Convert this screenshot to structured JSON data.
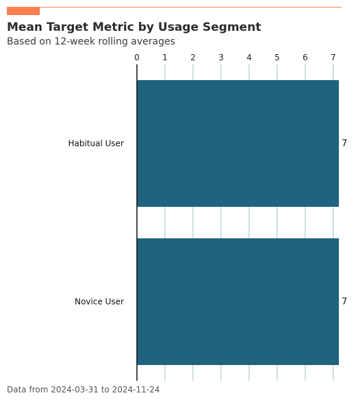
{
  "header": {
    "title": "Mean Target Metric by Usage Segment",
    "subtitle": "Based on 12-week rolling averages"
  },
  "footer": {
    "note": "Data from 2024-03-31 to 2024-11-24"
  },
  "colors": {
    "accent": "#ff7f50",
    "bar": "#1f637e",
    "grid": "#9fbfbf"
  },
  "chart_data": {
    "type": "bar",
    "orientation": "horizontal",
    "categories": [
      "Habitual User",
      "Novice User"
    ],
    "values": [
      7.2,
      7.2
    ],
    "value_labels": [
      "7",
      "7"
    ],
    "xlim": [
      0,
      7.2
    ],
    "x_ticks": [
      0,
      1,
      2,
      3,
      4,
      5,
      6,
      7
    ],
    "x_axis_position": "top",
    "grid": "vertical",
    "legend": "none"
  }
}
